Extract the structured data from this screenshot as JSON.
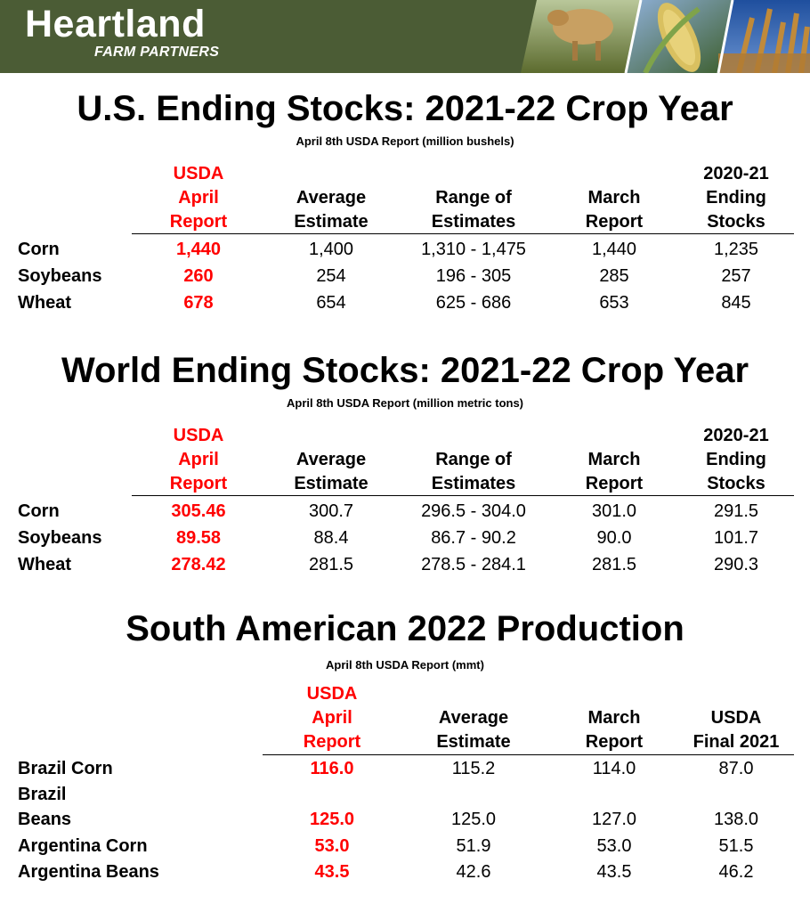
{
  "brand": {
    "name": "Heartland",
    "tagline": "FARM PARTNERS"
  },
  "us": {
    "title": "U.S. Ending Stocks:   2021-22 Crop Year",
    "subtitle": "April 8th USDA Report  (million  bushels)",
    "headers": {
      "usda": [
        "USDA",
        "April",
        "Report"
      ],
      "avg": [
        "Average",
        "Estimate"
      ],
      "range": [
        "Range of",
        "Estimates"
      ],
      "march": [
        "March",
        "Report"
      ],
      "prior": [
        "2020-21",
        "Ending",
        "Stocks"
      ]
    },
    "rows": [
      {
        "label": "Corn",
        "usda": "1,440",
        "avg": "1,400",
        "range": "1,310 - 1,475",
        "march": "1,440",
        "prior": "1,235"
      },
      {
        "label": "Soybeans",
        "usda": "260",
        "avg": "254",
        "range": "196 - 305",
        "march": "285",
        "prior": "257"
      },
      {
        "label": "Wheat",
        "usda": "678",
        "avg": "654",
        "range": "625 - 686",
        "march": "653",
        "prior": "845"
      }
    ]
  },
  "world": {
    "title": "World Ending Stocks:   2021-22 Crop Year",
    "subtitle": "April 8th USDA Report  (million  metric tons)",
    "headers": {
      "usda": [
        "USDA",
        "April",
        "Report"
      ],
      "avg": [
        "Average",
        "Estimate"
      ],
      "range": [
        "Range of",
        "Estimates"
      ],
      "march": [
        "March",
        "Report"
      ],
      "prior": [
        "2020-21",
        "Ending",
        "Stocks"
      ]
    },
    "rows": [
      {
        "label": "Corn",
        "usda": "305.46",
        "avg": "300.7",
        "range": "296.5 - 304.0",
        "march": "301.0",
        "prior": "291.5"
      },
      {
        "label": "Soybeans",
        "usda": "89.58",
        "avg": "88.4",
        "range": "86.7 - 90.2",
        "march": "90.0",
        "prior": "101.7"
      },
      {
        "label": "Wheat",
        "usda": "278.42",
        "avg": "281.5",
        "range": "278.5 - 284.1",
        "march": "281.5",
        "prior": "290.3"
      }
    ]
  },
  "sa": {
    "title": "South American 2022 Production",
    "subtitle": "April 8th USDA Report  (mmt)",
    "headers": {
      "usda": [
        "USDA",
        "April",
        "Report"
      ],
      "avg": [
        "Average",
        "Estimate"
      ],
      "march": [
        "March",
        "Report"
      ],
      "final": [
        "USDA",
        "Final 2021"
      ]
    },
    "rows": [
      {
        "label": [
          "Brazil Corn"
        ],
        "usda": "116.0",
        "avg": "115.2",
        "march": "114.0",
        "final": "87.0"
      },
      {
        "label": [
          "Brazil",
          "Beans"
        ],
        "usda": "125.0",
        "avg": "125.0",
        "march": "127.0",
        "final": "138.0"
      },
      {
        "label": [
          "Argentina Corn"
        ],
        "usda": "53.0",
        "avg": "51.9",
        "march": "53.0",
        "final": "51.5"
      },
      {
        "label": [
          "Argentina Beans"
        ],
        "usda": "43.5",
        "avg": "42.6",
        "march": "43.5",
        "final": "46.2"
      }
    ]
  }
}
